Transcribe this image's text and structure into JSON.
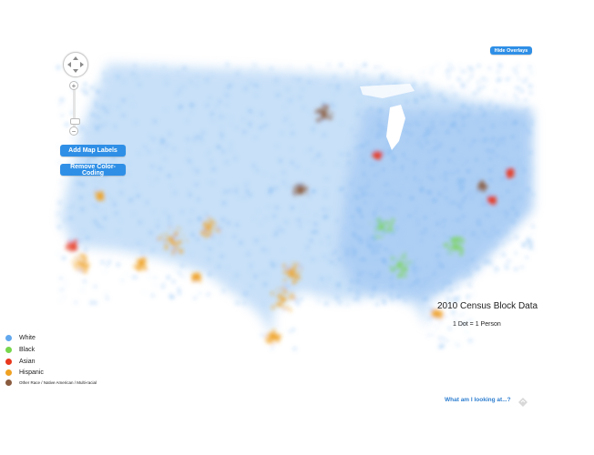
{
  "map": {
    "colors": {
      "white": "#62a8ee",
      "black": "#77d64c",
      "asian": "#e8381d",
      "hispanic": "#f0a122",
      "other": "#8a5b3f"
    }
  },
  "controls": {
    "hide_overlays_label": "Hide Overlays",
    "add_map_labels_label": "Add Map Labels",
    "remove_color_coding_label": "Remove Color-Coding",
    "zoom_in": "+",
    "zoom_out": "−"
  },
  "legend": {
    "title": "2010 Census Block Data",
    "subtitle": "1 Dot = 1 Person",
    "items": [
      {
        "label": "White",
        "color": "#62a8ee"
      },
      {
        "label": "Black",
        "color": "#77d64c"
      },
      {
        "label": "Asian",
        "color": "#e8381d"
      },
      {
        "label": "Hispanic",
        "color": "#f0a122"
      },
      {
        "label": "Other Race / Native American / Multi-racial",
        "color": "#8a5b3f"
      }
    ],
    "info_link": "What am I looking at...?"
  }
}
